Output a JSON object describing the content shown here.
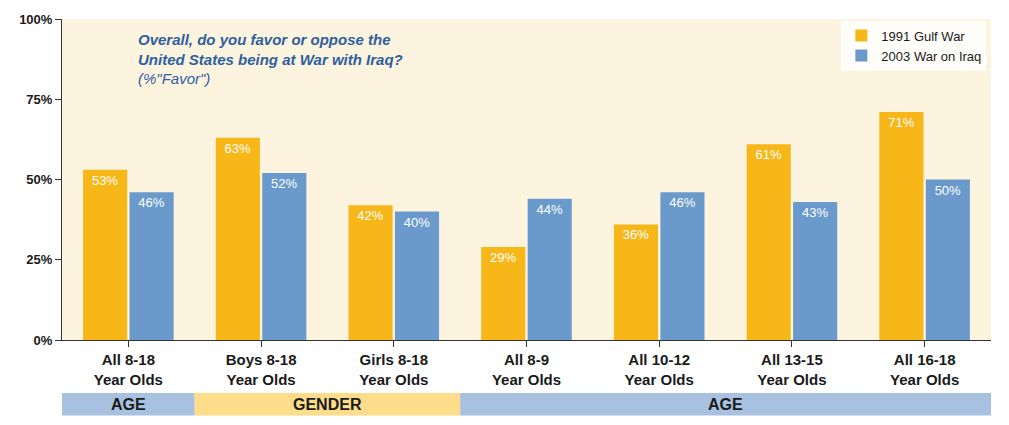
{
  "chart_data": {
    "type": "bar",
    "title": "Overall, do you favor or oppose the United States being at War with Iraq?",
    "subtitle": "(%\"Favor\")",
    "categories": [
      "All 8-18 Year Olds",
      "Boys 8-18 Year Olds",
      "Girls 8-18 Year Olds",
      "All 8-9 Year Olds",
      "All 10-12 Year Olds",
      "All 13-15 Year Olds",
      "All 16-18 Year Olds"
    ],
    "groups": [
      {
        "label": "AGE",
        "categories": [
          "All 8-18 Year Olds"
        ]
      },
      {
        "label": "GENDER",
        "categories": [
          "Boys 8-18 Year Olds",
          "Girls 8-18 Year Olds"
        ]
      },
      {
        "label": "AGE",
        "categories": [
          "All 8-9 Year Olds",
          "All 10-12 Year Olds",
          "All 13-15 Year Olds",
          "All 16-18 Year Olds"
        ]
      }
    ],
    "series": [
      {
        "name": "1991 Gulf War",
        "color": "#f7b718",
        "values": [
          53,
          63,
          42,
          29,
          36,
          61,
          71
        ],
        "value_labels": [
          "53%",
          "63%",
          "42%",
          "29%",
          "36%",
          "61%",
          "71%"
        ]
      },
      {
        "name": "2003 War on Iraq",
        "color": "#6a9acb",
        "values": [
          46,
          52,
          40,
          44,
          46,
          43,
          50
        ],
        "value_labels": [
          "46%",
          "52%",
          "40%",
          "44%",
          "46%",
          "43%",
          "50%"
        ]
      }
    ],
    "ylim": [
      0,
      100
    ],
    "yticks": [
      {
        "value": 0,
        "label": "0%"
      },
      {
        "value": 25,
        "label": "25%"
      },
      {
        "value": 50,
        "label": "50%"
      },
      {
        "value": 75,
        "label": "75%"
      },
      {
        "value": 100,
        "label": "100%"
      }
    ],
    "grid": false,
    "legend": "top right",
    "data_labels": true
  }
}
